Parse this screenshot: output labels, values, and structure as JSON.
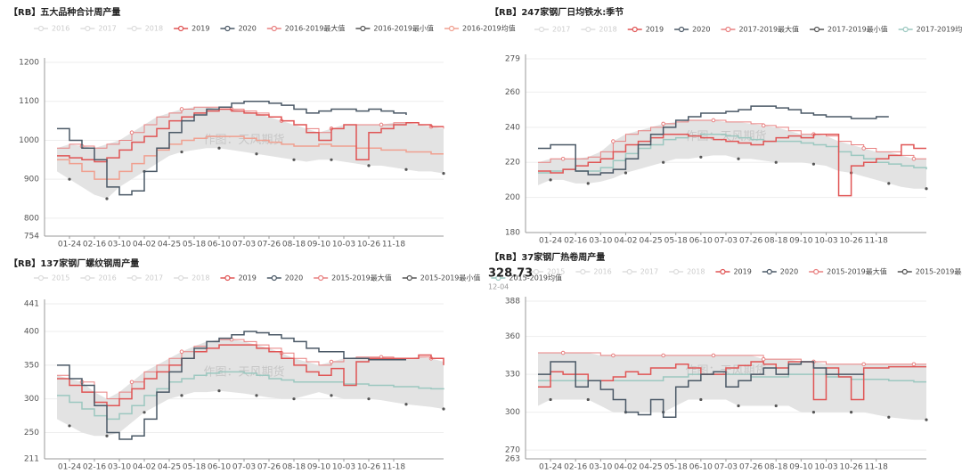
{
  "chart_data": [
    {
      "type": "line",
      "title": "【RB】五大品种合计周产量",
      "watermark": "作图：天风期货",
      "inactive_legend": [
        "2016",
        "2017",
        "2018"
      ],
      "categories": [
        null,
        "01-24",
        null,
        "02-16",
        null,
        "03-10",
        null,
        "04-02",
        null,
        "04-25",
        null,
        "05-18",
        null,
        "06-10",
        null,
        "07-03",
        null,
        "07-26",
        null,
        "08-18",
        null,
        "09-10",
        null,
        "10-03",
        null,
        "10-26",
        null,
        "11-18",
        null,
        null,
        null,
        null
      ],
      "ylim": [
        754,
        1200
      ],
      "yticks": [
        754,
        800,
        900,
        1000,
        1100,
        1200
      ],
      "grid": true,
      "band_color": "#e3e3e3",
      "series": [
        {
          "name": "2019",
          "color": "#e05555",
          "style": "line",
          "values": [
            960,
            955,
            950,
            945,
            955,
            975,
            995,
            1010,
            1030,
            1050,
            1060,
            1070,
            1075,
            1080,
            1075,
            1070,
            1065,
            1060,
            1050,
            1040,
            1020,
            1000,
            1030,
            1040,
            950,
            1020,
            1030,
            1040,
            1045,
            1040,
            1035,
            1035
          ]
        },
        {
          "name": "2020",
          "color": "#4a5866",
          "style": "line",
          "values": [
            1030,
            1000,
            980,
            950,
            880,
            860,
            870,
            920,
            980,
            1020,
            1050,
            1065,
            1080,
            1085,
            1095,
            1100,
            1100,
            1095,
            1090,
            1080,
            1070,
            1075,
            1080,
            1080,
            1075,
            1080,
            1075,
            1070,
            1065,
            null,
            null,
            null
          ]
        },
        {
          "name": "2016-2019最大值",
          "color": "#e88080",
          "style": "max",
          "values": [
            980,
            990,
            985,
            980,
            990,
            1000,
            1020,
            1040,
            1060,
            1070,
            1080,
            1085,
            1085,
            1080,
            1080,
            1075,
            1070,
            1060,
            1050,
            1040,
            1030,
            1020,
            1030,
            1040,
            1040,
            1040,
            1040,
            1045,
            1045,
            1040,
            1035,
            1030
          ]
        },
        {
          "name": "2016-2019最小值",
          "color": "#555555",
          "style": "dots",
          "values": [
            920,
            900,
            880,
            860,
            850,
            880,
            900,
            920,
            940,
            960,
            970,
            975,
            980,
            980,
            975,
            970,
            965,
            960,
            955,
            950,
            945,
            950,
            950,
            945,
            940,
            935,
            935,
            930,
            925,
            920,
            920,
            915
          ]
        },
        {
          "name": "2016-2019均值",
          "color": "#f0a090",
          "style": "line",
          "values": [
            950,
            940,
            920,
            900,
            900,
            920,
            940,
            960,
            975,
            990,
            1000,
            1005,
            1010,
            1010,
            1010,
            1005,
            1000,
            995,
            990,
            985,
            985,
            990,
            985,
            985,
            980,
            980,
            975,
            975,
            970,
            970,
            965,
            965
          ]
        }
      ]
    },
    {
      "type": "line",
      "title": "【RB】247家钢厂日均铁水:季节",
      "watermark": "作图：天风期货",
      "inactive_legend": [
        "2017",
        "2018"
      ],
      "categories": [
        null,
        "01-24",
        null,
        "02-16",
        null,
        "03-10",
        null,
        "04-02",
        null,
        "04-25",
        null,
        "05-18",
        null,
        "06-10",
        null,
        "07-03",
        null,
        "07-26",
        null,
        "08-18",
        null,
        "09-10",
        null,
        "10-03",
        null,
        "10-26",
        null,
        "11-18",
        null,
        null,
        null,
        null
      ],
      "ylim": [
        180,
        279
      ],
      "yticks": [
        180,
        200,
        220,
        240,
        260,
        279
      ],
      "grid": true,
      "band_color": "#e3e3e3",
      "series": [
        {
          "name": "2019",
          "color": "#e05555",
          "style": "line",
          "values": [
            215,
            214,
            216,
            218,
            220,
            222,
            226,
            230,
            232,
            234,
            236,
            236,
            235,
            234,
            233,
            232,
            231,
            230,
            232,
            234,
            235,
            234,
            236,
            236,
            201,
            218,
            220,
            222,
            224,
            230,
            228,
            228
          ]
        },
        {
          "name": "2020",
          "color": "#4a5866",
          "style": "line",
          "values": [
            228,
            230,
            230,
            215,
            213,
            214,
            216,
            222,
            230,
            236,
            240,
            244,
            246,
            248,
            248,
            249,
            250,
            252,
            252,
            251,
            250,
            248,
            247,
            246,
            246,
            245,
            245,
            246,
            246,
            null,
            null,
            null
          ]
        },
        {
          "name": "2017-2019最大值",
          "color": "#e88080",
          "style": "max",
          "values": [
            220,
            222,
            222,
            222,
            223,
            226,
            232,
            236,
            238,
            240,
            242,
            243,
            244,
            244,
            244,
            243,
            243,
            242,
            241,
            240,
            238,
            236,
            236,
            235,
            232,
            230,
            228,
            226,
            226,
            224,
            222,
            222
          ]
        },
        {
          "name": "2017-2019最小值",
          "color": "#555555",
          "style": "dots",
          "values": [
            207,
            210,
            210,
            208,
            208,
            209,
            211,
            214,
            216,
            218,
            220,
            222,
            222,
            223,
            224,
            224,
            222,
            222,
            221,
            220,
            220,
            220,
            219,
            218,
            215,
            214,
            212,
            210,
            208,
            206,
            205,
            205
          ]
        },
        {
          "name": "2017-2019均值",
          "color": "#9cc8c0",
          "style": "line",
          "values": [
            214,
            215,
            216,
            215,
            215,
            217,
            221,
            225,
            228,
            230,
            233,
            234,
            235,
            236,
            236,
            235,
            234,
            233,
            232,
            232,
            232,
            231,
            230,
            229,
            226,
            224,
            222,
            220,
            219,
            218,
            217,
            216
          ]
        }
      ]
    },
    {
      "type": "line",
      "title": "【RB】137家钢厂螺纹钢周产量",
      "watermark": "作图：天风期货",
      "inactive_legend": [
        "2015",
        "2016",
        "2017",
        "2018"
      ],
      "categories": [
        null,
        "01-24",
        null,
        "02-16",
        null,
        "03-10",
        null,
        "04-02",
        null,
        "04-25",
        null,
        "05-18",
        null,
        "06-10",
        null,
        "07-03",
        null,
        "07-26",
        null,
        "08-18",
        null,
        "09-10",
        null,
        "10-03",
        null,
        "10-26",
        null,
        "11-18",
        null,
        null,
        null,
        null
      ],
      "ylim": [
        211,
        441
      ],
      "yticks": [
        211,
        250,
        300,
        350,
        400,
        441
      ],
      "grid": true,
      "band_color": "#e3e3e3",
      "series": [
        {
          "name": "2019",
          "color": "#e05555",
          "style": "line",
          "values": [
            330,
            320,
            310,
            295,
            290,
            300,
            315,
            330,
            340,
            350,
            360,
            370,
            375,
            380,
            380,
            380,
            375,
            370,
            360,
            350,
            340,
            335,
            345,
            320,
            355,
            360,
            360,
            360,
            360,
            365,
            360,
            350
          ]
        },
        {
          "name": "2020",
          "color": "#4a5866",
          "style": "line",
          "values": [
            350,
            330,
            320,
            290,
            250,
            240,
            245,
            270,
            310,
            340,
            360,
            375,
            385,
            390,
            395,
            400,
            398,
            395,
            390,
            385,
            375,
            370,
            370,
            360,
            360,
            358,
            358,
            358,
            358,
            null,
            null,
            null
          ]
        },
        {
          "name": "2015-2019最大值",
          "color": "#e88080",
          "style": "max",
          "values": [
            335,
            330,
            325,
            310,
            300,
            310,
            325,
            340,
            350,
            360,
            370,
            378,
            385,
            388,
            388,
            385,
            380,
            375,
            368,
            360,
            355,
            350,
            355,
            360,
            362,
            362,
            362,
            360,
            360,
            362,
            360,
            355
          ]
        },
        {
          "name": "2015-2019最小值",
          "color": "#555555",
          "style": "dots",
          "values": [
            270,
            260,
            250,
            245,
            245,
            250,
            265,
            280,
            290,
            300,
            305,
            310,
            310,
            312,
            310,
            308,
            305,
            302,
            300,
            300,
            305,
            310,
            305,
            300,
            300,
            300,
            298,
            295,
            292,
            290,
            288,
            285
          ]
        },
        {
          "name": "2015-2019均值",
          "color": "#9cc8c0",
          "style": "line",
          "values": [
            305,
            295,
            285,
            275,
            270,
            278,
            290,
            305,
            315,
            325,
            330,
            335,
            338,
            340,
            340,
            338,
            335,
            330,
            328,
            325,
            325,
            325,
            325,
            322,
            322,
            320,
            320,
            318,
            318,
            316,
            315,
            314
          ]
        }
      ]
    },
    {
      "type": "line",
      "title": "【RB】37家钢厂热卷周产量",
      "watermark": "作图：天风期货",
      "annotations": [
        "328.73",
        "12-04"
      ],
      "inactive_legend": [
        "2015",
        "2016",
        "2017",
        "2018"
      ],
      "categories": [
        null,
        "01-24",
        null,
        "02-16",
        null,
        "03-10",
        null,
        "04-02",
        null,
        "04-25",
        null,
        "05-18",
        null,
        "06-10",
        null,
        "07-03",
        null,
        "07-26",
        null,
        "08-18",
        null,
        "09-10",
        null,
        "10-03",
        null,
        "10-26",
        null,
        "11-18",
        null,
        null,
        null,
        null
      ],
      "ylim": [
        263,
        388
      ],
      "yticks": [
        263,
        270,
        300,
        330,
        360,
        388
      ],
      "grid": true,
      "band_color": "#e3e3e3",
      "series": [
        {
          "name": "2019",
          "color": "#e05555",
          "style": "line",
          "values": [
            320,
            332,
            330,
            330,
            325,
            325,
            328,
            332,
            330,
            335,
            335,
            338,
            335,
            330,
            330,
            335,
            337,
            340,
            338,
            335,
            340,
            340,
            310,
            335,
            328,
            310,
            335,
            335,
            336,
            336,
            336,
            336
          ]
        },
        {
          "name": "2020",
          "color": "#4a5866",
          "style": "line",
          "values": [
            330,
            340,
            340,
            320,
            325,
            318,
            310,
            300,
            298,
            310,
            296,
            320,
            325,
            330,
            332,
            320,
            325,
            330,
            335,
            330,
            338,
            340,
            335,
            330,
            330,
            330,
            330,
            null,
            null,
            null,
            null,
            null
          ]
        },
        {
          "name": "2015-2019最大值",
          "color": "#e88080",
          "style": "max",
          "values": [
            347,
            347,
            347,
            347,
            347,
            345,
            345,
            345,
            345,
            345,
            345,
            345,
            345,
            345,
            345,
            345,
            345,
            345,
            342,
            342,
            342,
            340,
            340,
            338,
            338,
            338,
            338,
            338,
            338,
            338,
            338,
            338
          ]
        },
        {
          "name": "2015-2019最小值",
          "color": "#555555",
          "style": "dots",
          "values": [
            305,
            310,
            310,
            310,
            310,
            305,
            300,
            300,
            300,
            300,
            300,
            305,
            310,
            310,
            310,
            310,
            305,
            305,
            305,
            305,
            305,
            300,
            300,
            300,
            300,
            300,
            300,
            298,
            296,
            295,
            294,
            294
          ]
        },
        {
          "name": "2015-2019均值",
          "color": "#9cc8c0",
          "style": "line",
          "values": [
            325,
            325,
            325,
            325,
            325,
            325,
            325,
            325,
            325,
            325,
            328,
            328,
            330,
            330,
            330,
            330,
            330,
            328,
            328,
            328,
            330,
            330,
            330,
            328,
            328,
            326,
            326,
            326,
            325,
            325,
            324,
            324
          ]
        }
      ]
    }
  ]
}
